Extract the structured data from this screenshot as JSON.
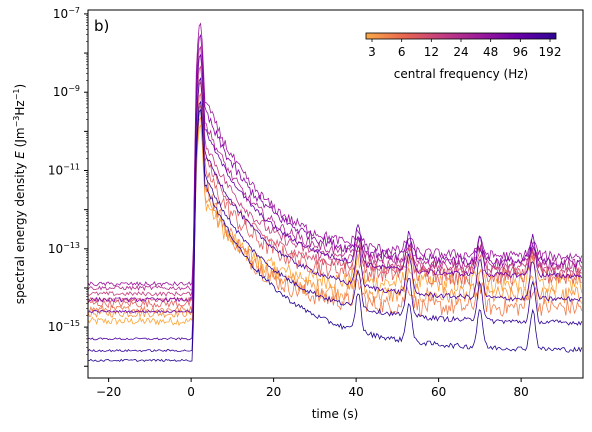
{
  "chart_data": {
    "type": "line",
    "panel_label": "b)",
    "xlabel": "time (s)",
    "ylabel_parts": {
      "pre": "spectral energy density ",
      "sym": "E",
      "post": " (Jm",
      "e1": "−3",
      "mid": "Hz",
      "e2": "−1",
      "end": ")"
    },
    "xlim": [
      -25,
      95
    ],
    "ylim_log10": [
      -16.3,
      -6.9
    ],
    "yscale": "log",
    "x_ticks": [
      -20,
      0,
      20,
      40,
      60,
      80
    ],
    "x_tick_labels": [
      "−20",
      "0",
      "20",
      "40",
      "60",
      "80"
    ],
    "y_ticks_log10": [
      -15,
      -13,
      -11,
      -9,
      -7
    ],
    "y_tick_base": "10",
    "y_tick_exps": [
      "−15",
      "−13",
      "−11",
      "−9",
      "−7"
    ],
    "colorbar": {
      "label": "central frequency (Hz)",
      "tick_labels": [
        "3",
        "6",
        "12",
        "24",
        "48",
        "96",
        "192"
      ],
      "colormap": "plasma",
      "colors": [
        "#f9a949",
        "#e8664f",
        "#c33d80",
        "#9b1b9a",
        "#6a00a8",
        "#2e0595"
      ]
    },
    "series": [
      {
        "freq": 3,
        "color": "#fca636",
        "pre": -14.85,
        "peak": -9.8,
        "tail": -13.9
      },
      {
        "freq": 4,
        "color": "#f89540",
        "pre": -14.65,
        "peak": -9.6,
        "tail": -14.2
      },
      {
        "freq": 6,
        "color": "#f07f4f",
        "pre": -14.55,
        "peak": -9.3,
        "tail": -14.5
      },
      {
        "freq": 8,
        "color": "#e16462",
        "pre": -14.4,
        "peak": -9.0,
        "tail": -13.7
      },
      {
        "freq": 12,
        "color": "#d35171",
        "pre": -14.3,
        "peak": -8.7,
        "tail": -13.6
      },
      {
        "freq": 17,
        "color": "#c33d80",
        "pre": -14.15,
        "peak": -8.3,
        "tail": -13.5
      },
      {
        "freq": 24,
        "color": "#b12a90",
        "pre": -14.0,
        "peak": -7.8,
        "tail": -13.4
      },
      {
        "freq": 34,
        "color": "#9c179e",
        "pre": -13.9,
        "peak": -7.2,
        "tail": -13.2
      },
      {
        "freq": 48,
        "color": "#8606a6",
        "pre": -14.3,
        "peak": -7.5,
        "tail": -13.35
      },
      {
        "freq": 68,
        "color": "#6a00a8",
        "pre": -14.6,
        "peak": -8.0,
        "tail": -13.7
      },
      {
        "freq": 96,
        "color": "#4c02a1",
        "pre": -15.3,
        "peak": -8.6,
        "tail": -14.3
      },
      {
        "freq": 136,
        "color": "#350498",
        "pre": -15.6,
        "peak": -9.2,
        "tail": -14.9
      },
      {
        "freq": 192,
        "color": "#240691",
        "pre": -15.85,
        "peak": -9.4,
        "tail": -15.6
      }
    ],
    "spikes_x": [
      40.5,
      52.8,
      70.0,
      82.8
    ]
  }
}
